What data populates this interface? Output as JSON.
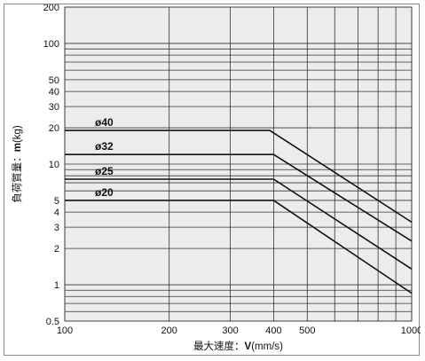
{
  "chart_data": {
    "type": "line",
    "xscale": "log",
    "yscale": "log",
    "xlim": [
      100,
      1000
    ],
    "ylim": [
      0.5,
      200
    ],
    "grid": true,
    "background": "#ececec",
    "line_color": "#111111",
    "xlabel": {
      "prefix": "最大速度：",
      "symbol": "V",
      "unit": "(mm/s)"
    },
    "ylabel": {
      "prefix": "負荷質量：",
      "symbol": "m",
      "unit": "(kg)"
    },
    "xticks": [
      100,
      200,
      300,
      400,
      500,
      1000
    ],
    "xtick_labels": [
      "100",
      "200",
      "300",
      "400",
      "500",
      "1000"
    ],
    "xgrid": [
      100,
      200,
      300,
      400,
      500,
      600,
      700,
      800,
      900,
      1000
    ],
    "yticks": [
      0.5,
      1,
      2,
      3,
      4,
      5,
      10,
      20,
      30,
      40,
      50,
      100,
      200
    ],
    "ytick_labels": [
      "0.5",
      "1",
      "2",
      "3",
      "4",
      "5",
      "10",
      "20",
      "30",
      "40",
      "50",
      "100",
      "200"
    ],
    "ygrid": [
      0.5,
      0.6,
      0.7,
      0.8,
      0.9,
      1,
      2,
      3,
      4,
      5,
      6,
      7,
      8,
      9,
      10,
      20,
      30,
      40,
      50,
      60,
      70,
      80,
      90,
      100,
      200
    ],
    "series": [
      {
        "name": "ø40",
        "x": [
          100,
          390,
          1000
        ],
        "y": [
          19,
          19,
          3.3
        ]
      },
      {
        "name": "ø32",
        "x": [
          100,
          400,
          1000
        ],
        "y": [
          12,
          12,
          2.3
        ]
      },
      {
        "name": "ø25",
        "x": [
          100,
          400,
          1000
        ],
        "y": [
          7.5,
          7.5,
          1.35
        ]
      },
      {
        "name": "ø20",
        "x": [
          100,
          400,
          1000
        ],
        "y": [
          5,
          5,
          0.85
        ]
      }
    ]
  }
}
